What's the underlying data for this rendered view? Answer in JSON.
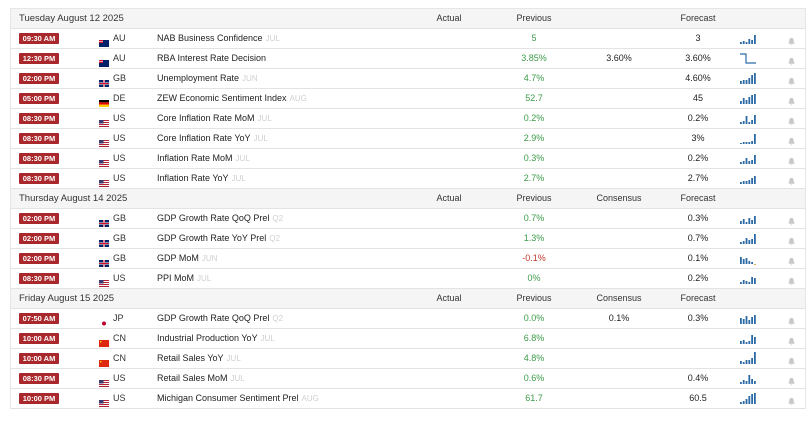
{
  "headers": {
    "actual": "Actual",
    "previous": "Previous",
    "consensus": "Consensus",
    "forecast": "Forecast"
  },
  "sections": [
    {
      "date": "Tuesday August 12 2025",
      "show_consensus": false,
      "events": [
        {
          "time": "09:30 AM",
          "flag": "au",
          "country": "AU",
          "event": "NAB Business Confidence",
          "ref": "JUL",
          "actual": "",
          "previous": "5",
          "prev_neg": false,
          "consensus": "",
          "forecast": "3",
          "spark": "p1"
        },
        {
          "time": "12:30 PM",
          "flag": "au",
          "country": "AU",
          "event": "RBA Interest Rate Decision",
          "ref": "",
          "actual": "",
          "previous": "3.85%",
          "prev_neg": false,
          "consensus": "3.60%",
          "forecast": "3.60%",
          "spark": "step"
        },
        {
          "time": "02:00 PM",
          "flag": "gb",
          "country": "GB",
          "event": "Unemployment Rate",
          "ref": "JUN",
          "actual": "",
          "previous": "4.7%",
          "prev_neg": false,
          "consensus": "",
          "forecast": "4.60%",
          "spark": "p2"
        },
        {
          "time": "05:00 PM",
          "flag": "de",
          "country": "DE",
          "event": "ZEW Economic Sentiment Index",
          "ref": "AUG",
          "actual": "",
          "previous": "52.7",
          "prev_neg": false,
          "consensus": "",
          "forecast": "45",
          "spark": "p3"
        },
        {
          "time": "08:30 PM",
          "flag": "us",
          "country": "US",
          "event": "Core Inflation Rate MoM",
          "ref": "JUL",
          "actual": "",
          "previous": "0.2%",
          "prev_neg": false,
          "consensus": "",
          "forecast": "0.2%",
          "spark": "p4"
        },
        {
          "time": "08:30 PM",
          "flag": "us",
          "country": "US",
          "event": "Core Inflation Rate YoY",
          "ref": "JUL",
          "actual": "",
          "previous": "2.9%",
          "prev_neg": false,
          "consensus": "",
          "forecast": "3%",
          "spark": "p5"
        },
        {
          "time": "08:30 PM",
          "flag": "us",
          "country": "US",
          "event": "Inflation Rate MoM",
          "ref": "JUL",
          "actual": "",
          "previous": "0.3%",
          "prev_neg": false,
          "consensus": "",
          "forecast": "0.2%",
          "spark": "p6"
        },
        {
          "time": "08:30 PM",
          "flag": "us",
          "country": "US",
          "event": "Inflation Rate YoY",
          "ref": "JUL",
          "actual": "",
          "previous": "2.7%",
          "prev_neg": false,
          "consensus": "",
          "forecast": "2.7%",
          "spark": "p7"
        }
      ]
    },
    {
      "date": "Thursday August 14 2025",
      "show_consensus": true,
      "events": [
        {
          "time": "02:00 PM",
          "flag": "gb",
          "country": "GB",
          "event": "GDP Growth Rate QoQ Prel",
          "ref": "Q2",
          "actual": "",
          "previous": "0.7%",
          "prev_neg": false,
          "consensus": "",
          "forecast": "0.3%",
          "spark": "p8"
        },
        {
          "time": "02:00 PM",
          "flag": "gb",
          "country": "GB",
          "event": "GDP Growth Rate YoY Prel",
          "ref": "Q2",
          "actual": "",
          "previous": "1.3%",
          "prev_neg": false,
          "consensus": "",
          "forecast": "0.7%",
          "spark": "p9"
        },
        {
          "time": "02:00 PM",
          "flag": "gb",
          "country": "GB",
          "event": "GDP MoM",
          "ref": "JUN",
          "actual": "",
          "previous": "-0.1%",
          "prev_neg": true,
          "consensus": "",
          "forecast": "0.1%",
          "spark": "p10"
        },
        {
          "time": "08:30 PM",
          "flag": "us",
          "country": "US",
          "event": "PPI MoM",
          "ref": "JUL",
          "actual": "",
          "previous": "0%",
          "prev_neg": false,
          "consensus": "",
          "forecast": "0.2%",
          "spark": "p11"
        }
      ]
    },
    {
      "date": "Friday August 15 2025",
      "show_consensus": true,
      "events": [
        {
          "time": "07:50 AM",
          "flag": "jp",
          "country": "JP",
          "event": "GDP Growth Rate QoQ Prel",
          "ref": "Q2",
          "actual": "",
          "previous": "0.0%",
          "prev_neg": false,
          "consensus": "0.1%",
          "forecast": "0.3%",
          "spark": "p12"
        },
        {
          "time": "10:00 AM",
          "flag": "cn",
          "country": "CN",
          "event": "Industrial Production YoY",
          "ref": "JUL",
          "actual": "",
          "previous": "6.8%",
          "prev_neg": false,
          "consensus": "",
          "forecast": "",
          "spark": "p13"
        },
        {
          "time": "10:00 AM",
          "flag": "cn",
          "country": "CN",
          "event": "Retail Sales YoY",
          "ref": "JUL",
          "actual": "",
          "previous": "4.8%",
          "prev_neg": false,
          "consensus": "",
          "forecast": "",
          "spark": "p14"
        },
        {
          "time": "08:30 PM",
          "flag": "us",
          "country": "US",
          "event": "Retail Sales MoM",
          "ref": "JUL",
          "actual": "",
          "previous": "0.6%",
          "prev_neg": false,
          "consensus": "",
          "forecast": "0.4%",
          "spark": "p15"
        },
        {
          "time": "10:00 PM",
          "flag": "us",
          "country": "US",
          "event": "Michigan Consumer Sentiment Prel",
          "ref": "AUG",
          "actual": "",
          "previous": "61.7",
          "prev_neg": false,
          "consensus": "",
          "forecast": "60.5",
          "spark": "p16"
        }
      ]
    }
  ],
  "colors": {
    "time_badge": "#a8282b",
    "previous_positive": "#3c9b48",
    "previous_negative": "#c0392b",
    "spark_bar": "#2c6aa6",
    "bell": "#c8c8c8"
  },
  "icons": {
    "alert": "bell-icon",
    "trend": "sparkline-icon"
  }
}
